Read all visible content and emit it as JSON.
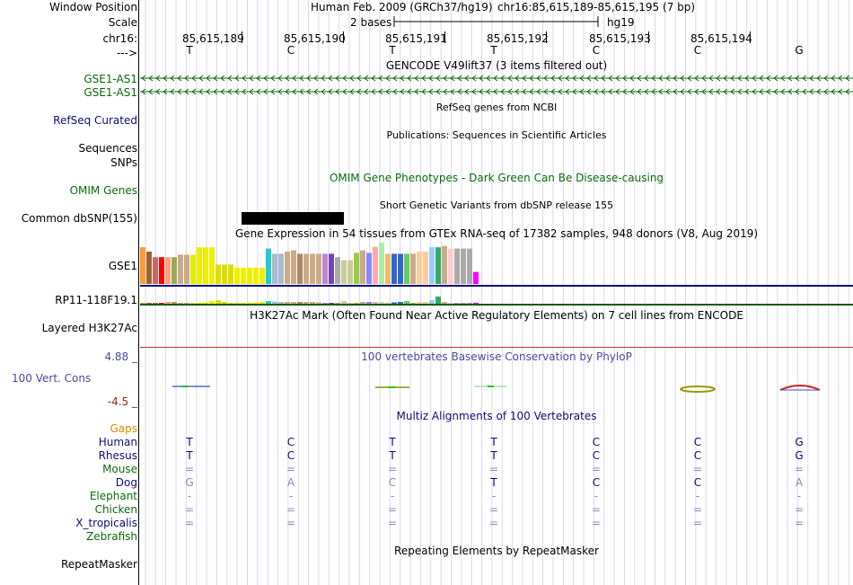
{
  "labels": {
    "window_position": "Window Position",
    "scale": "Scale",
    "chrom": "chr16:",
    "strand": "--->",
    "gse1_as1_a": "GSE1-AS1",
    "gse1_as1_b": "GSE1-AS1",
    "refseq": "RefSeq Curated",
    "sequences": "Sequences",
    "snps": "SNPs",
    "omim": "OMIM Genes",
    "dbsnp": "Common dbSNP(155)",
    "gse1": "GSE1",
    "rp11": "RP11-118F19.1",
    "h3k27ac": "Layered H3K27Ac",
    "cons_max": "4.88 _",
    "cons": "100 Vert. Cons",
    "cons_min": "-4.5 _",
    "gaps": "Gaps",
    "repeatmasker": "RepeatMasker"
  },
  "colors": {
    "gse1_as1": "#0b6b0b",
    "refseq": "#0c0c78",
    "omim": "#0b6b0b",
    "cons": "#4a4a9e",
    "cons_min": "#8b2a0b",
    "gaps": "#dd8800",
    "species_primate": "#0c0c78",
    "species_other": "#0b6b0b"
  },
  "header": {
    "assembly": "Human Feb. 2009 (GRCh37/hg19)",
    "position": "chr16:85,615,189-85,615,195 (7 bp)",
    "scale_text": "2 bases",
    "scale_db": "hg19"
  },
  "ruler": {
    "coordinates": [
      "85,615,189",
      "85,615,190",
      "85,615,191",
      "85,615,192",
      "85,615,193",
      "85,615,194"
    ],
    "bases": [
      "T",
      "C",
      "T",
      "T",
      "C",
      "C",
      "G"
    ]
  },
  "tracks": {
    "gencode": "GENCODE V49lift37 (3 items filtered out)",
    "refseq": "RefSeq genes from NCBI",
    "publications": "Publications: Sequences in Scientific Articles",
    "omim": "OMIM Gene Phenotypes - Dark Green Can Be Disease-causing",
    "dbsnp": "Short Genetic Variants from dbSNP release 155",
    "gtex": "Gene Expression in 54 tissues from GTEx RNA-seq of 17382 samples, 948 donors (V8, Aug 2019)",
    "h3k27ac": "H3K27Ac Mark (Often Found Near Active Regulatory Elements) on 7 cell lines from ENCODE",
    "phylop": "100 vertebrates Basewise Conservation by PhyloP",
    "multiz": "Multiz Alignments of 100 Vertebrates",
    "repeatmasker": "Repeating Elements by RepeatMasker"
  },
  "gtex": {
    "gse1_heights": [
      0.85,
      0.75,
      0.62,
      0.62,
      0.62,
      0.62,
      0.68,
      0.68,
      0.68,
      0.85,
      0.85,
      0.85,
      0.45,
      0.45,
      0.45,
      0.38,
      0.38,
      0.38,
      0.38,
      0.38,
      0.82,
      0.7,
      0.7,
      0.75,
      0.78,
      0.7,
      0.7,
      0.7,
      0.7,
      0.7,
      0.7,
      0.62,
      0.55,
      0.55,
      0.72,
      0.78,
      0.72,
      0.86,
      0.96,
      0.7,
      0.7,
      0.7,
      0.7,
      0.7,
      0.75,
      0.75,
      0.85,
      0.85,
      0.88,
      0.82,
      0.82,
      0.82,
      0.82,
      0.28
    ],
    "colors": [
      "#ff9933",
      "#996633",
      "#cc6666",
      "#ff0000",
      "#ffa07a",
      "#99aa55",
      "#ccaa88",
      "#ccaa88",
      "#ddee00",
      "#eeee00",
      "#eeee00",
      "#eeee00",
      "#dddd00",
      "#dddd00",
      "#dddd00",
      "#eeee00",
      "#eeee00",
      "#eeee00",
      "#eeee00",
      "#eeee00",
      "#22cccc",
      "#aabbcc",
      "#aabbcc",
      "#ccaa88",
      "#ccaa88",
      "#aa8866",
      "#ccaa88",
      "#ccaa88",
      "#ccaa88",
      "#bb88cc",
      "#7744aa",
      "#aaaaaa",
      "#cccc99",
      "#cccc99",
      "#99cc44",
      "#ccaa88",
      "#8888ff",
      "#ffaaaa",
      "#aaeeaa",
      "#eebb66",
      "#3366cc",
      "#3366cc",
      "#66cc66",
      "#ccaa88",
      "#ffcc99",
      "#ffcc99",
      "#99ccff",
      "#33aa66",
      "#ccaa88",
      "#ffcccc",
      "#aaaaaa",
      "#aaaaaa",
      "#aaaaaa",
      "#ff00ff"
    ],
    "rp11_heights": [
      0.05,
      0.05,
      0.05,
      0.1,
      0.2,
      0.2,
      0.1,
      0.05,
      0.05,
      0.1,
      0.15,
      0.3,
      0.4,
      0.2,
      0.1,
      0.1,
      0.05,
      0.1,
      0.15,
      0.2,
      0.3,
      0.25,
      0.2,
      0.2,
      0.2,
      0.2,
      0.2,
      0.2,
      0.15,
      0.1,
      0.05,
      0.1,
      0.3,
      0.1,
      0.05,
      0.2,
      0.2,
      0.2,
      0.2,
      0.1,
      0.15,
      0.2,
      0.3,
      0.1,
      0.2,
      0.2,
      0.4,
      0.8,
      0.2,
      0.1,
      0.1,
      0.1,
      0.1,
      0.05
    ]
  },
  "alignment": {
    "species": [
      {
        "name": "Human",
        "bases": [
          "T",
          "C",
          "T",
          "T",
          "C",
          "C",
          "G"
        ],
        "primate": true
      },
      {
        "name": "Rhesus",
        "bases": [
          "T",
          "C",
          "T",
          "T",
          "C",
          "C",
          "G"
        ],
        "primate": true
      },
      {
        "name": "Mouse",
        "bases": [
          "=",
          "=",
          "=",
          "=",
          "=",
          "=",
          "="
        ],
        "primate": false
      },
      {
        "name": "Dog",
        "bases": [
          "G",
          "A",
          "C",
          "T",
          "C",
          "C",
          "A"
        ],
        "primate": true
      },
      {
        "name": "Elephant",
        "bases": [
          "-",
          "-",
          "-",
          "-",
          "-",
          "-",
          "-"
        ],
        "primate": false
      },
      {
        "name": "Chicken",
        "bases": [
          "=",
          "=",
          "=",
          "=",
          "=",
          "=",
          "="
        ],
        "primate": false
      },
      {
        "name": "X_tropicalis",
        "bases": [
          "=",
          "=",
          "=",
          "=",
          "=",
          "=",
          "="
        ],
        "primate": true
      },
      {
        "name": "Zebrafish",
        "bases": [
          "",
          "",
          "",
          "",
          "",
          "",
          ""
        ],
        "primate": false
      }
    ],
    "match_flags": [
      [
        true,
        true,
        true,
        true,
        true,
        true,
        true
      ],
      [
        true,
        true,
        true,
        true,
        true,
        true,
        true
      ],
      [
        false,
        false,
        false,
        false,
        false,
        false,
        false
      ],
      [
        false,
        false,
        false,
        true,
        true,
        true,
        false
      ],
      [
        false,
        false,
        false,
        false,
        false,
        false,
        false
      ],
      [
        false,
        false,
        false,
        false,
        false,
        false,
        false
      ],
      [
        false,
        false,
        false,
        false,
        false,
        false,
        false
      ],
      [
        false,
        false,
        false,
        false,
        false,
        false,
        false
      ]
    ]
  }
}
